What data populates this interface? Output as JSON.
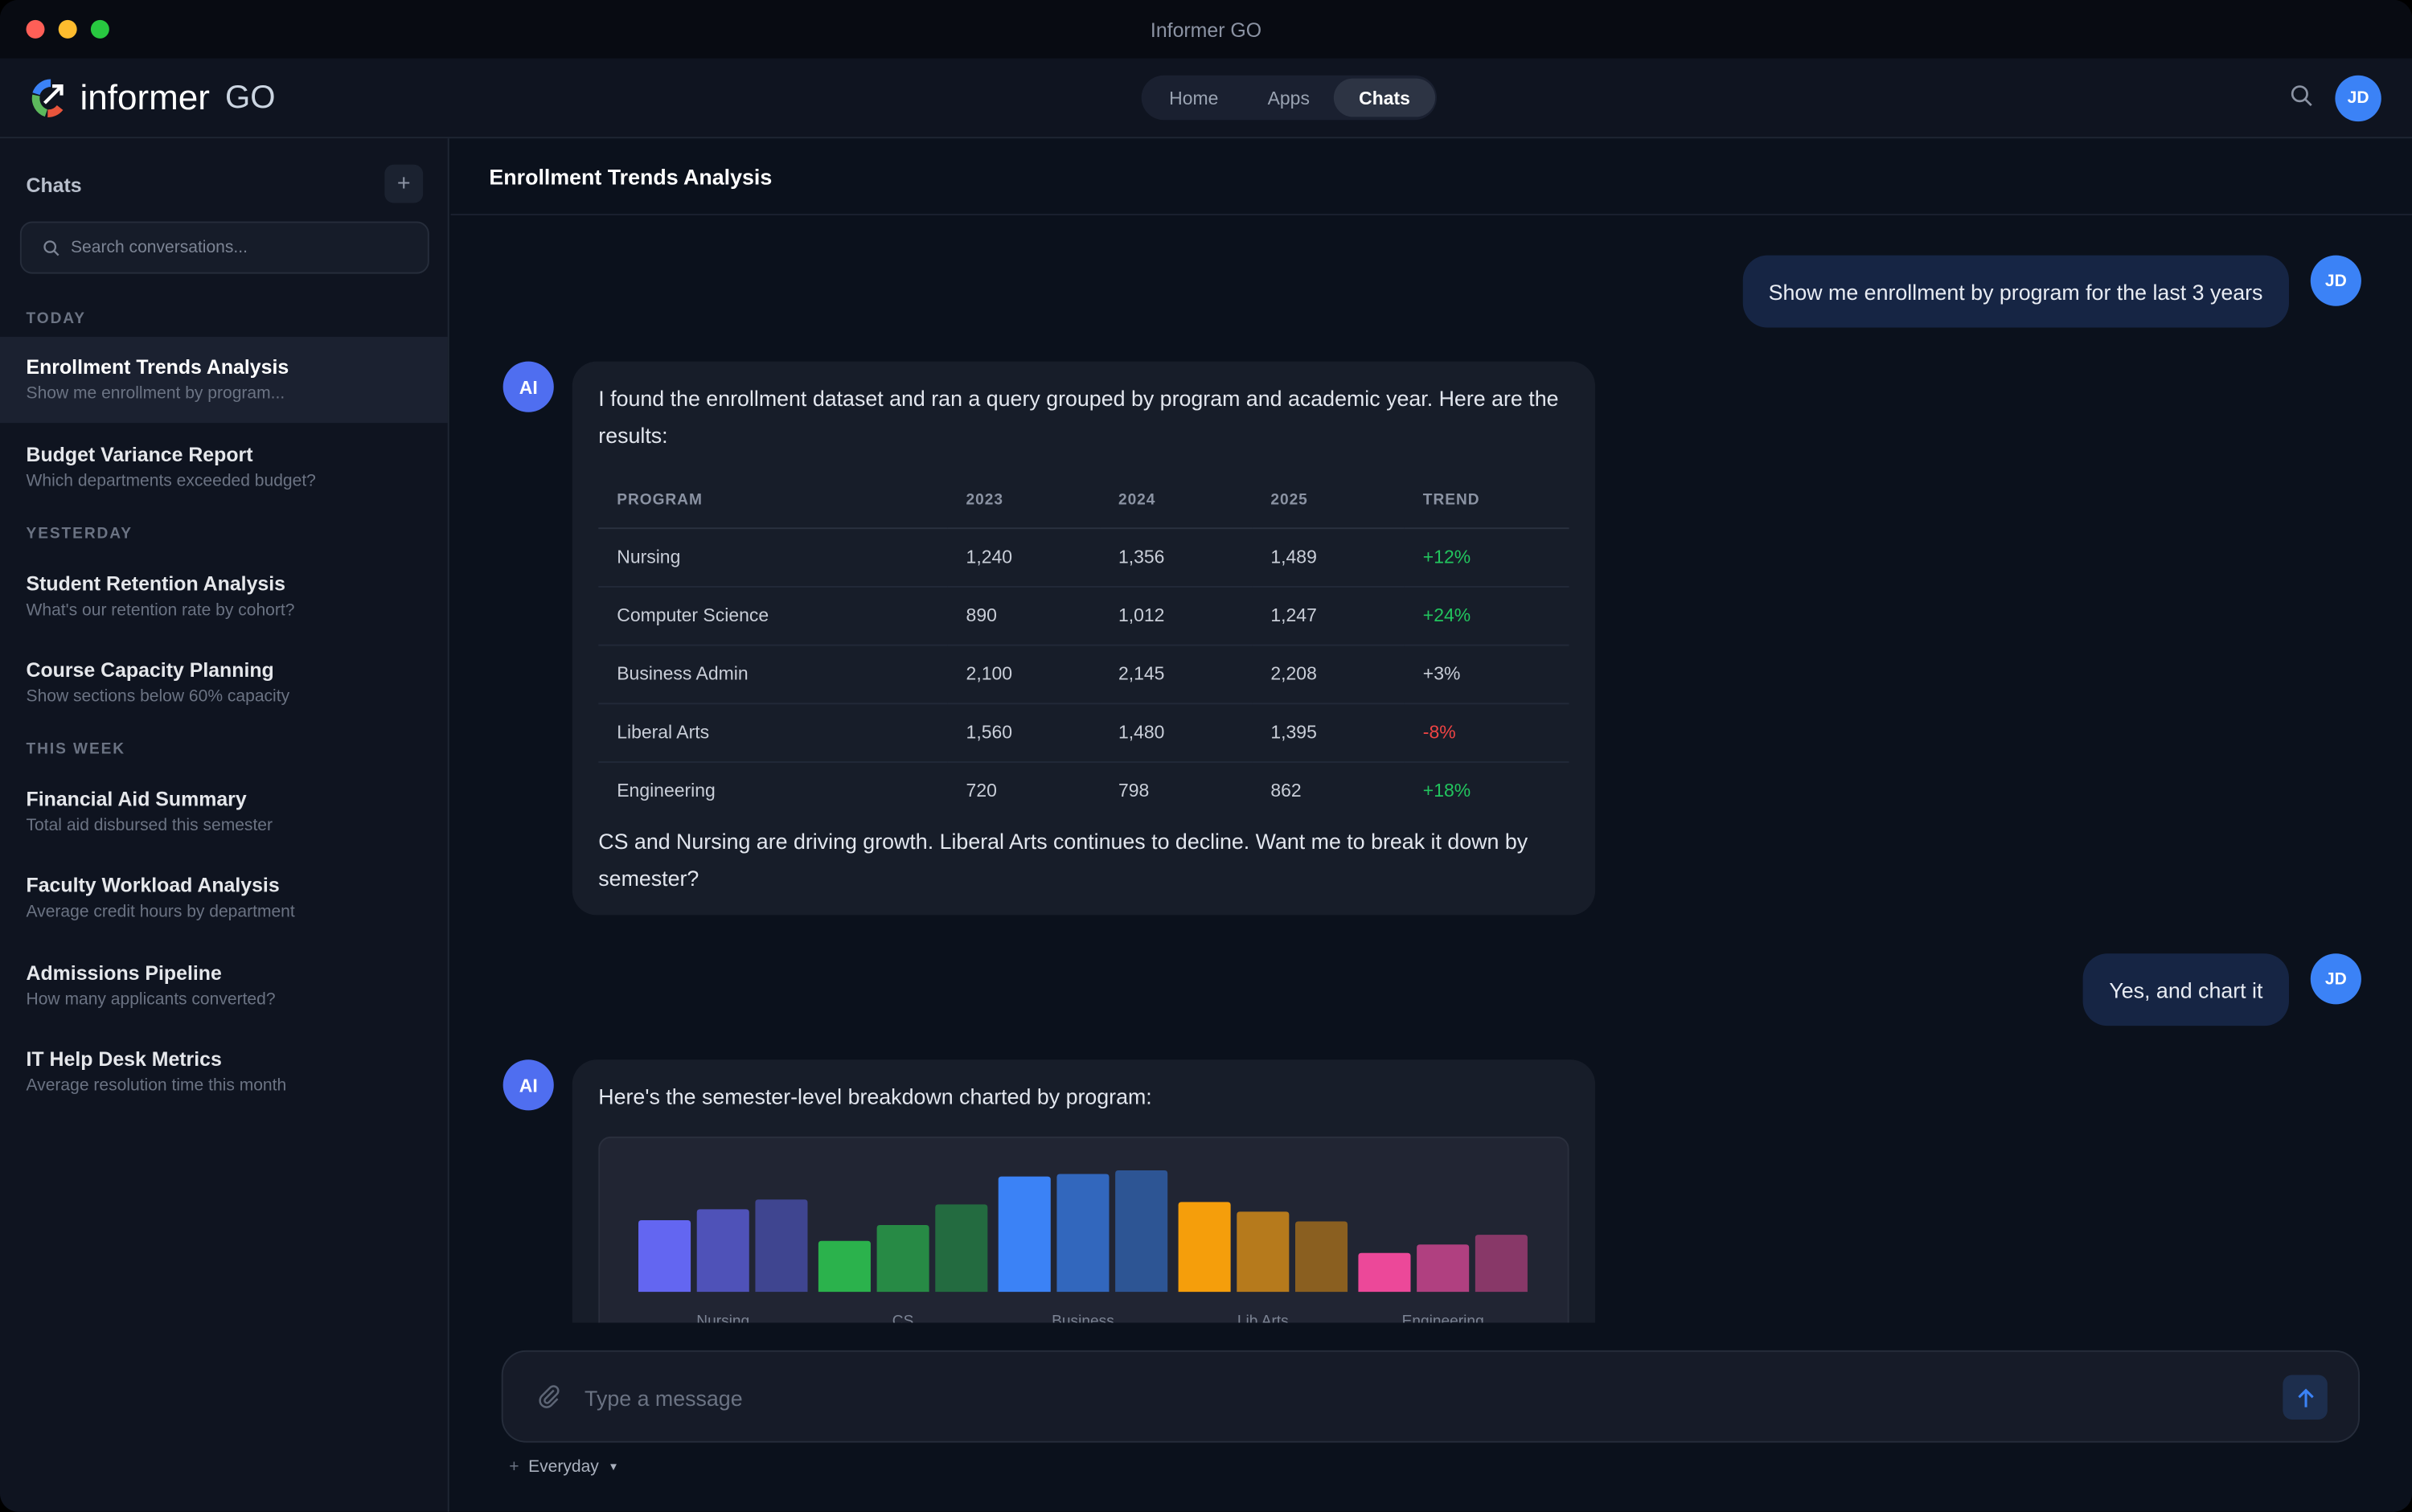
{
  "window": {
    "title": "Informer GO"
  },
  "header": {
    "logo_main": "informer",
    "logo_suffix": "GO",
    "nav": [
      {
        "label": "Home"
      },
      {
        "label": "Apps"
      },
      {
        "label": "Chats",
        "active": true
      }
    ],
    "user_initials": "JD"
  },
  "sidebar": {
    "title": "Chats",
    "add_label": "+",
    "search_placeholder": "Search conversations...",
    "sections": [
      {
        "label": "TODAY"
      },
      {
        "label": "YESTERDAY"
      },
      {
        "label": "THIS WEEK"
      }
    ],
    "items": [
      {
        "title": "Enrollment Trends Analysis",
        "subtitle": "Show me enrollment by program...",
        "selected": true
      },
      {
        "title": "Budget Variance Report",
        "subtitle": "Which departments exceeded budget?"
      },
      {
        "title": "Student Retention Analysis",
        "subtitle": "What's our retention rate by cohort?"
      },
      {
        "title": "Course Capacity Planning",
        "subtitle": "Show sections below 60% capacity"
      },
      {
        "title": "Financial Aid Summary",
        "subtitle": "Total aid disbursed this semester"
      },
      {
        "title": "Faculty Workload Analysis",
        "subtitle": "Average credit hours by department"
      },
      {
        "title": "Admissions Pipeline",
        "subtitle": "How many applicants converted?"
      },
      {
        "title": "IT Help Desk Metrics",
        "subtitle": "Average resolution time this month"
      }
    ]
  },
  "chat": {
    "title": "Enrollment Trends Analysis",
    "messages": [
      {
        "role": "user",
        "avatar": "JD",
        "text": "Show me enrollment by program for the last 3 years"
      },
      {
        "role": "ai",
        "avatar": "AI",
        "intro": "I found the enrollment dataset and ran a query grouped by program and academic year. Here are the results:",
        "table": {
          "headers": [
            "PROGRAM",
            "2023",
            "2024",
            "2025",
            "TREND"
          ],
          "rows": [
            [
              "Nursing",
              "1,240",
              "1,356",
              "1,489",
              "+12%"
            ],
            [
              "Computer Science",
              "890",
              "1,012",
              "1,247",
              "+24%"
            ],
            [
              "Business Admin",
              "2,100",
              "2,145",
              "2,208",
              "+3%"
            ],
            [
              "Liberal Arts",
              "1,560",
              "1,480",
              "1,395",
              "-8%"
            ],
            [
              "Engineering",
              "720",
              "798",
              "862",
              "+18%"
            ]
          ],
          "trend_colors": [
            "#22c55e",
            "#22c55e",
            "#c9ced8",
            "#ef4444",
            "#22c55e"
          ]
        },
        "outro": "CS and Nursing are driving growth. Liberal Arts continues to decline. Want me to break it down by semester?"
      },
      {
        "role": "user",
        "avatar": "JD",
        "text": "Yes, and chart it"
      },
      {
        "role": "ai",
        "avatar": "AI",
        "intro": "Here's the semester-level breakdown charted by program:"
      }
    ]
  },
  "chart_data": {
    "type": "bar",
    "categories": [
      "Nursing",
      "CS",
      "Business",
      "Lib Arts",
      "Engineering"
    ],
    "note_scale": "relative bar heights, max = 100",
    "values": [
      [
        59,
        68,
        76
      ],
      [
        42,
        55,
        72
      ],
      [
        95,
        97,
        100
      ],
      [
        74,
        66,
        58
      ],
      [
        32,
        39,
        47
      ]
    ],
    "colors": [
      [
        "#6366f1",
        "#4f52b8",
        "#3f4590"
      ],
      [
        "#2bb24c",
        "#278a45",
        "#236b40"
      ],
      [
        "#3b82f6",
        "#3267bd",
        "#2d5594"
      ],
      [
        "#f59e0b",
        "#b67a1c",
        "#8a5f20"
      ],
      [
        "#ec4899",
        "#b04080",
        "#883868"
      ]
    ],
    "grid": false,
    "legend": "none"
  },
  "composer": {
    "placeholder": "Type a message",
    "mode_label": "Everyday",
    "mode_prefix": "+"
  }
}
